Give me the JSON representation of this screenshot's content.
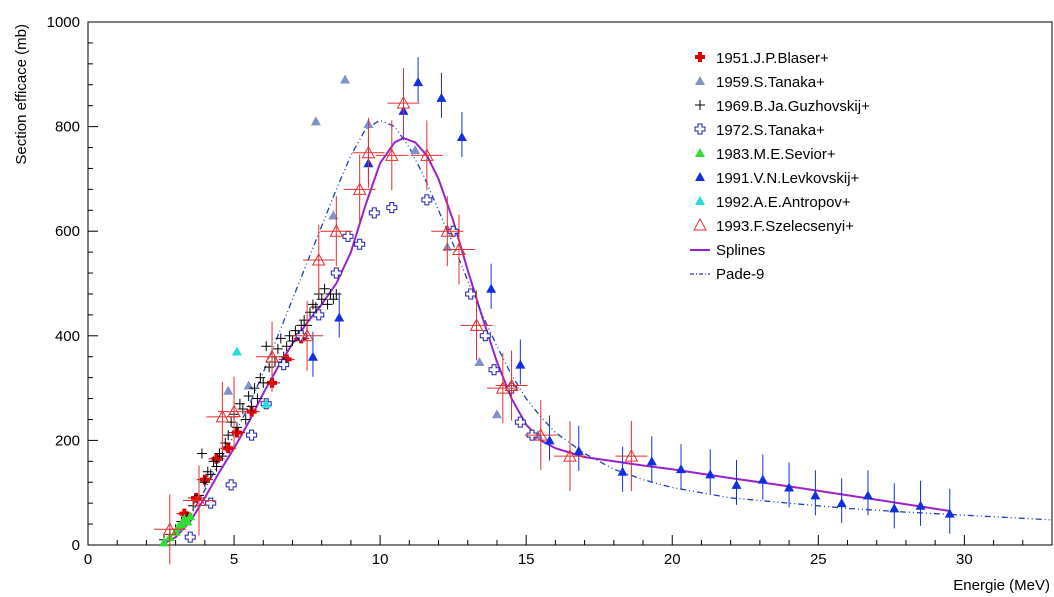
{
  "chart_data": {
    "type": "scatter",
    "xlabel": "Energie (MeV)",
    "ylabel": "Section efficace (mb)",
    "xlim": [
      0,
      33
    ],
    "ylim": [
      0,
      1000
    ],
    "grid": false,
    "legend_position": "top-right",
    "x_ticks": [
      0,
      5,
      10,
      15,
      20,
      25,
      30
    ],
    "x_tick_labels": [
      "0",
      "5",
      "10",
      "15",
      "20",
      "25",
      "30"
    ],
    "y_ticks": [
      0,
      200,
      400,
      600,
      800,
      1000
    ],
    "y_tick_labels": [
      "0",
      "200",
      "400",
      "600",
      "800",
      "1000"
    ],
    "series": [
      {
        "name": "1951.J.P.Blaser+",
        "marker": "cross-filled",
        "color": "#e00000",
        "points": [
          [
            3.3,
            60
          ],
          [
            3.7,
            90
          ],
          [
            4.0,
            125
          ],
          [
            4.4,
            165
          ],
          [
            4.8,
            185
          ],
          [
            5.1,
            215
          ],
          [
            5.6,
            255
          ],
          [
            6.3,
            310
          ],
          [
            6.8,
            355
          ],
          [
            7.3,
            395
          ]
        ]
      },
      {
        "name": "1959.S.Tanaka+",
        "marker": "triangle-filled",
        "color": "#7f93c9",
        "points": [
          [
            4.8,
            295
          ],
          [
            5.5,
            305
          ],
          [
            7.8,
            810
          ],
          [
            8.4,
            630
          ],
          [
            8.8,
            890
          ],
          [
            9.6,
            805
          ],
          [
            11.2,
            755
          ],
          [
            12.3,
            570
          ],
          [
            13.4,
            350
          ],
          [
            14.0,
            250
          ],
          [
            15.4,
            210
          ]
        ]
      },
      {
        "name": "1969.B.Ja.Guzhovskij+",
        "marker": "plus",
        "color": "#000000",
        "points": [
          [
            2.6,
            10
          ],
          [
            2.8,
            20
          ],
          [
            3.0,
            30
          ],
          [
            3.2,
            45
          ],
          [
            3.4,
            55
          ],
          [
            3.6,
            75
          ],
          [
            3.8,
            95
          ],
          [
            3.9,
            175
          ],
          [
            4.0,
            120
          ],
          [
            4.1,
            140
          ],
          [
            4.2,
            135
          ],
          [
            4.3,
            160
          ],
          [
            4.4,
            150
          ],
          [
            4.5,
            175
          ],
          [
            4.6,
            170
          ],
          [
            4.7,
            195
          ],
          [
            4.8,
            210
          ],
          [
            4.9,
            235
          ],
          [
            5.0,
            250
          ],
          [
            5.1,
            225
          ],
          [
            5.2,
            270
          ],
          [
            5.3,
            260
          ],
          [
            5.4,
            240
          ],
          [
            5.5,
            285
          ],
          [
            5.6,
            265
          ],
          [
            5.7,
            300
          ],
          [
            5.8,
            280
          ],
          [
            5.9,
            320
          ],
          [
            6.0,
            310
          ],
          [
            6.1,
            380
          ],
          [
            6.2,
            340
          ],
          [
            6.3,
            360
          ],
          [
            6.4,
            350
          ],
          [
            6.5,
            375
          ],
          [
            6.6,
            395
          ],
          [
            6.7,
            360
          ],
          [
            6.8,
            380
          ],
          [
            6.9,
            400
          ],
          [
            7.0,
            390
          ],
          [
            7.1,
            410
          ],
          [
            7.2,
            400
          ],
          [
            7.3,
            420
          ],
          [
            7.4,
            430
          ],
          [
            7.5,
            420
          ],
          [
            7.6,
            445
          ],
          [
            7.7,
            460
          ],
          [
            7.8,
            455
          ],
          [
            7.9,
            480
          ],
          [
            8.0,
            470
          ],
          [
            8.1,
            490
          ],
          [
            8.2,
            460
          ],
          [
            8.3,
            480
          ],
          [
            8.4,
            470
          ],
          [
            8.5,
            480
          ]
        ]
      },
      {
        "name": "1972.S.Tanaka+",
        "marker": "open-cross",
        "color": "#1f1fb0",
        "points": [
          [
            3.5,
            15
          ],
          [
            4.2,
            80
          ],
          [
            4.9,
            115
          ],
          [
            5.6,
            210
          ],
          [
            6.1,
            270
          ],
          [
            6.7,
            345
          ],
          [
            7.3,
            400
          ],
          [
            7.9,
            440
          ],
          [
            8.5,
            520
          ],
          [
            8.9,
            590
          ],
          [
            9.3,
            575
          ],
          [
            9.8,
            635
          ],
          [
            10.4,
            645
          ],
          [
            11.6,
            660
          ],
          [
            12.5,
            600
          ],
          [
            13.1,
            480
          ],
          [
            13.6,
            400
          ],
          [
            13.9,
            335
          ],
          [
            14.5,
            300
          ],
          [
            14.8,
            235
          ],
          [
            15.2,
            210
          ]
        ]
      },
      {
        "name": "1983.M.E.Sevior+",
        "marker": "triangle-filled",
        "color": "#33dd33",
        "points": [
          [
            2.6,
            5
          ],
          [
            2.8,
            15
          ],
          [
            3.0,
            25
          ],
          [
            3.1,
            35
          ],
          [
            3.2,
            40
          ],
          [
            3.3,
            50
          ],
          [
            3.4,
            45
          ],
          [
            3.5,
            55
          ]
        ]
      },
      {
        "name": "1991.V.N.Levkovskij+",
        "marker": "triangle-filled",
        "color": "#1030e0",
        "points": [
          [
            7.7,
            360
          ],
          [
            8.6,
            435
          ],
          [
            9.6,
            730
          ],
          [
            10.8,
            830
          ],
          [
            11.3,
            885
          ],
          [
            12.1,
            855
          ],
          [
            12.8,
            780
          ],
          [
            13.8,
            490
          ],
          [
            14.8,
            345
          ],
          [
            15.8,
            200
          ],
          [
            16.8,
            180
          ],
          [
            18.3,
            140
          ],
          [
            19.3,
            160
          ],
          [
            20.3,
            145
          ],
          [
            21.3,
            135
          ],
          [
            22.2,
            115
          ],
          [
            23.1,
            125
          ],
          [
            24.0,
            110
          ],
          [
            24.9,
            95
          ],
          [
            25.8,
            80
          ],
          [
            26.7,
            95
          ],
          [
            27.6,
            70
          ],
          [
            28.5,
            75
          ],
          [
            29.5,
            60
          ]
        ]
      },
      {
        "name": "1992.A.E.Antropov+",
        "marker": "triangle-filled",
        "color": "#22dddd",
        "points": [
          [
            5.1,
            370
          ],
          [
            6.1,
            270
          ]
        ]
      },
      {
        "name": "1993.F.Szelecsenyi+",
        "marker": "triangle-open",
        "color": "#e03030",
        "points": [
          [
            2.8,
            30
          ],
          [
            3.8,
            85
          ],
          [
            4.6,
            245
          ],
          [
            5.0,
            255
          ],
          [
            6.3,
            360
          ],
          [
            7.5,
            400
          ],
          [
            7.9,
            545
          ],
          [
            8.5,
            600
          ],
          [
            9.3,
            680
          ],
          [
            9.6,
            750
          ],
          [
            10.4,
            745
          ],
          [
            10.8,
            845
          ],
          [
            11.6,
            745
          ],
          [
            12.3,
            600
          ],
          [
            12.7,
            565
          ],
          [
            13.3,
            420
          ],
          [
            14.2,
            300
          ],
          [
            14.5,
            305
          ],
          [
            15.5,
            210
          ],
          [
            16.5,
            170
          ],
          [
            18.6,
            170
          ]
        ]
      },
      {
        "name": "Splines",
        "marker": "line",
        "color": "#9a22cc",
        "points": [
          [
            2.5,
            0
          ],
          [
            3.0,
            15
          ],
          [
            3.5,
            45
          ],
          [
            4.0,
            90
          ],
          [
            4.5,
            140
          ],
          [
            5.0,
            185
          ],
          [
            5.5,
            235
          ],
          [
            6.0,
            290
          ],
          [
            6.5,
            340
          ],
          [
            7.0,
            385
          ],
          [
            7.5,
            425
          ],
          [
            8.0,
            460
          ],
          [
            8.5,
            500
          ],
          [
            9.0,
            560
          ],
          [
            9.5,
            650
          ],
          [
            10.0,
            730
          ],
          [
            10.5,
            770
          ],
          [
            10.8,
            778
          ],
          [
            11.2,
            770
          ],
          [
            11.6,
            745
          ],
          [
            12.0,
            700
          ],
          [
            12.5,
            620
          ],
          [
            13.0,
            525
          ],
          [
            13.5,
            435
          ],
          [
            14.0,
            350
          ],
          [
            14.5,
            280
          ],
          [
            15.0,
            230
          ],
          [
            15.5,
            200
          ],
          [
            16.0,
            185
          ],
          [
            17.0,
            168
          ],
          [
            18.0,
            160
          ],
          [
            19.0,
            152
          ],
          [
            20.0,
            145
          ],
          [
            22.0,
            128
          ],
          [
            24.0,
            112
          ],
          [
            26.0,
            95
          ],
          [
            28.0,
            78
          ],
          [
            29.5,
            65
          ]
        ]
      },
      {
        "name": "Pade-9",
        "marker": "dashdot-line",
        "color": "#1c3fb8",
        "points": [
          [
            2.5,
            0
          ],
          [
            3.0,
            20
          ],
          [
            3.5,
            55
          ],
          [
            4.0,
            105
          ],
          [
            4.5,
            160
          ],
          [
            5.0,
            210
          ],
          [
            5.5,
            265
          ],
          [
            6.0,
            330
          ],
          [
            6.5,
            400
          ],
          [
            7.0,
            470
          ],
          [
            7.5,
            540
          ],
          [
            8.0,
            610
          ],
          [
            8.5,
            680
          ],
          [
            9.0,
            745
          ],
          [
            9.5,
            795
          ],
          [
            10.0,
            812
          ],
          [
            10.5,
            800
          ],
          [
            11.0,
            760
          ],
          [
            11.5,
            705
          ],
          [
            12.0,
            640
          ],
          [
            12.5,
            575
          ],
          [
            13.0,
            505
          ],
          [
            13.5,
            440
          ],
          [
            14.0,
            380
          ],
          [
            14.5,
            325
          ],
          [
            15.0,
            280
          ],
          [
            15.5,
            245
          ],
          [
            16.0,
            215
          ],
          [
            17.0,
            175
          ],
          [
            18.0,
            145
          ],
          [
            19.0,
            125
          ],
          [
            20.0,
            110
          ],
          [
            22.0,
            90
          ],
          [
            24.0,
            80
          ],
          [
            26.0,
            70
          ],
          [
            28.0,
            63
          ],
          [
            30.0,
            57
          ],
          [
            33.0,
            48
          ]
        ]
      }
    ]
  }
}
